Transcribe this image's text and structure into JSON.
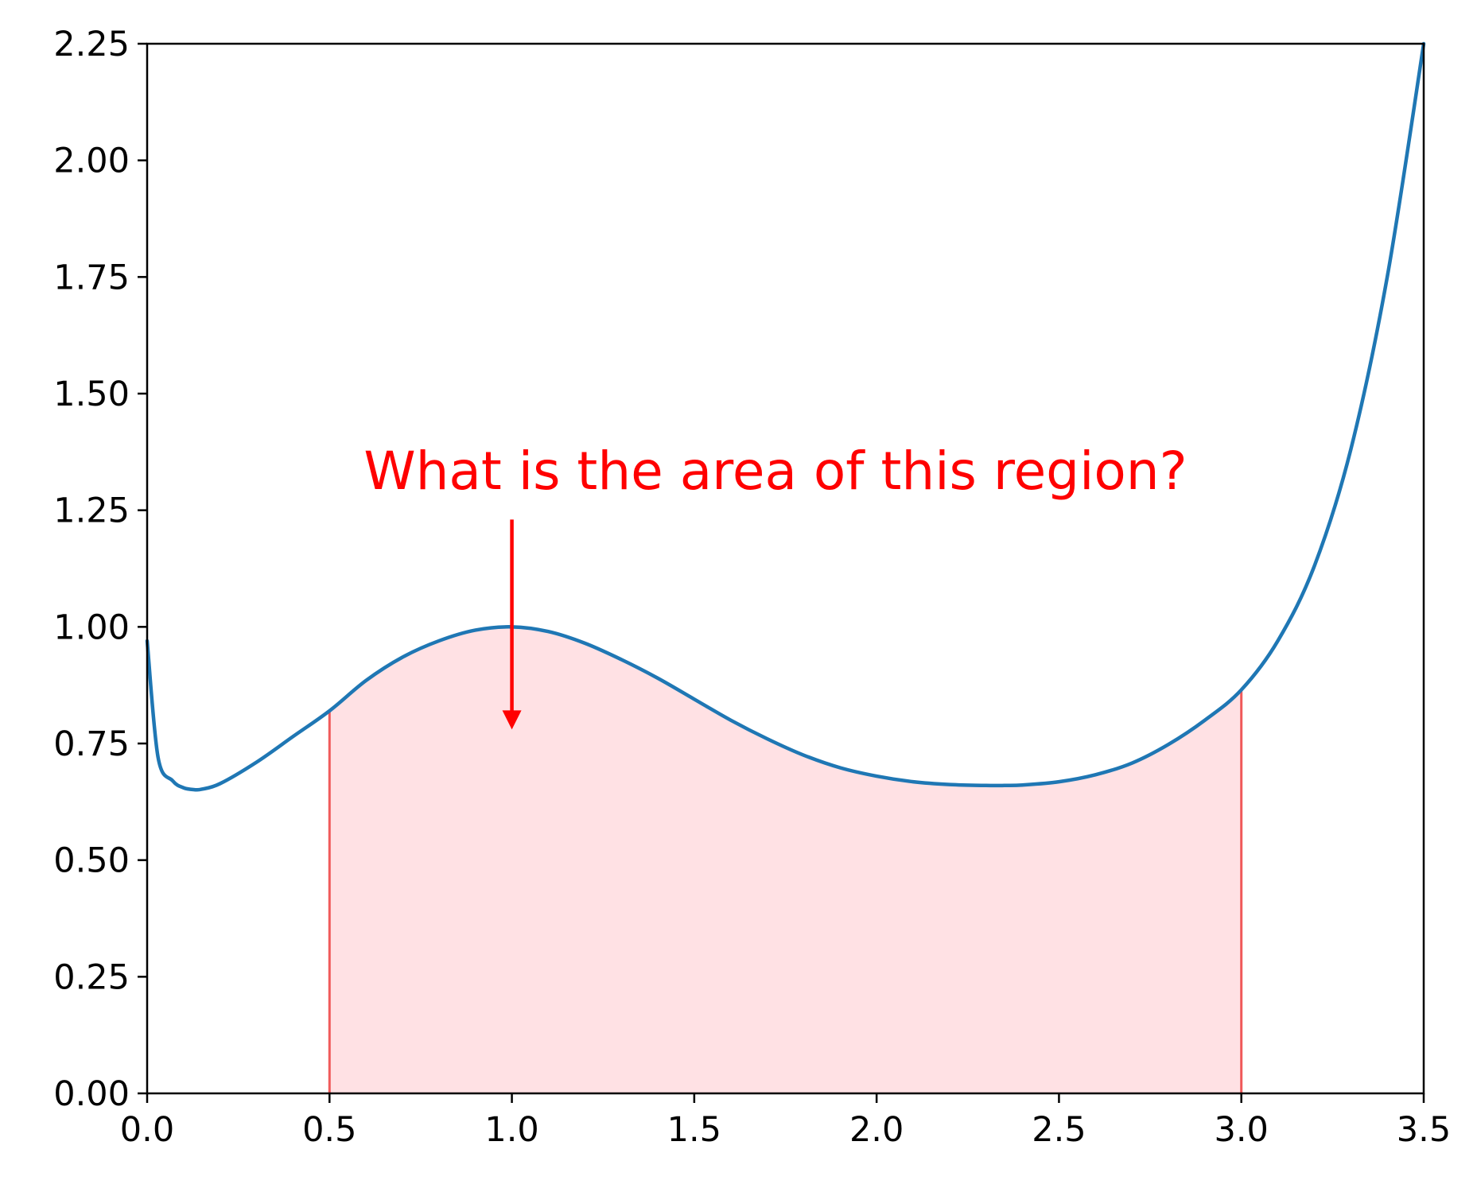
{
  "chart_data": {
    "type": "line",
    "title": "",
    "xlabel": "",
    "ylabel": "",
    "xlim": [
      0.0,
      3.5
    ],
    "ylim": [
      0.0,
      2.25
    ],
    "grid": false,
    "x_ticks": [
      "0.0",
      "0.5",
      "1.0",
      "1.5",
      "2.0",
      "2.5",
      "3.0",
      "3.5"
    ],
    "y_ticks": [
      "0.00",
      "0.25",
      "0.50",
      "0.75",
      "1.00",
      "1.25",
      "1.50",
      "1.75",
      "2.00",
      "2.25"
    ],
    "series": [
      {
        "color": "#1f77b4",
        "x": [
          0.0,
          0.03,
          0.07,
          0.1,
          0.13,
          0.15,
          0.2,
          0.3,
          0.4,
          0.5,
          0.6,
          0.7,
          0.8,
          0.9,
          1.0,
          1.1,
          1.2,
          1.3,
          1.4,
          1.5,
          1.6,
          1.7,
          1.8,
          1.9,
          2.0,
          2.1,
          2.2,
          2.3,
          2.35,
          2.4,
          2.5,
          2.6,
          2.7,
          2.8,
          2.9,
          3.0,
          3.1,
          3.2,
          3.3,
          3.4,
          3.5
        ],
        "y": [
          0.97,
          0.72,
          0.67,
          0.655,
          0.651,
          0.652,
          0.664,
          0.71,
          0.765,
          0.82,
          0.885,
          0.935,
          0.97,
          0.993,
          1.0,
          0.99,
          0.965,
          0.93,
          0.89,
          0.845,
          0.8,
          0.76,
          0.725,
          0.698,
          0.68,
          0.668,
          0.662,
          0.66,
          0.66,
          0.661,
          0.668,
          0.683,
          0.708,
          0.748,
          0.8,
          0.865,
          0.97,
          1.13,
          1.38,
          1.75,
          2.25
        ]
      }
    ],
    "shaded_region": {
      "x_from": 0.5,
      "x_to": 3.0,
      "fill_color": "#ffe1e4",
      "edge_color": "#f05a5a"
    },
    "annotation": {
      "text": "What is the area of this region?",
      "color": "#ff0000",
      "arrow_x": 1.0,
      "arrow_from_y": 1.23,
      "arrow_to_y": 0.78
    },
    "colors": {
      "axis": "#000000",
      "background": "#ffffff"
    }
  }
}
